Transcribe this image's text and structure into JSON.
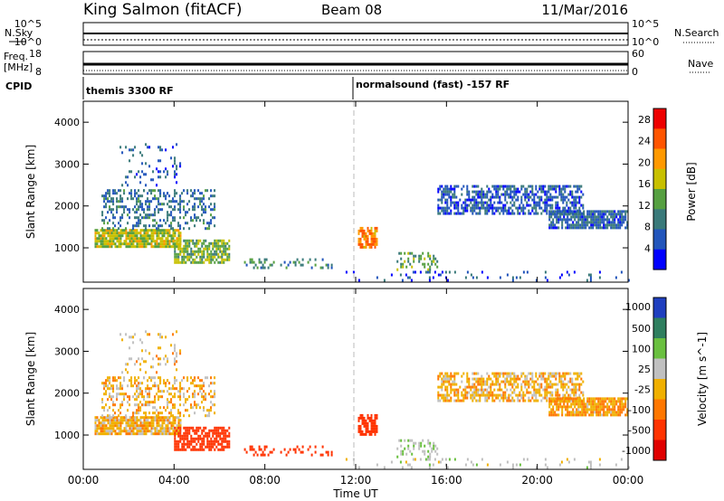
{
  "header": {
    "station": "King Salmon (fitACF)",
    "beam": "Beam 08",
    "date": "11/Mar/2016"
  },
  "top_panels": {
    "nsky_label": "N.Sky",
    "nsky_ticks": [
      "10^5",
      "10^0"
    ],
    "nsearch_label": "N.Search",
    "nsearch_ticks": [
      "10^5",
      "10^0"
    ],
    "freq_label_1": "Freq.",
    "freq_label_2": "[MHz]",
    "freq_ticks": [
      "18",
      "8"
    ],
    "nave_label": "Nave",
    "nave_ticks": [
      "60",
      "0"
    ],
    "cpid_label": "CPID",
    "cpid_entries": [
      "themis 3300 RF",
      "normalsound (fast) -157 RF"
    ]
  },
  "chart_data": [
    {
      "type": "heatmap",
      "title": "",
      "xlabel": "",
      "ylabel": "Slant Range [km]",
      "x_ticks": [
        "00:00",
        "04:00",
        "08:00",
        "12:00",
        "16:00",
        "20:00",
        "00:00"
      ],
      "x_range_hours": [
        0,
        24
      ],
      "y_ticks": [
        1000,
        2000,
        3000,
        4000
      ],
      "ylim": [
        180,
        4500
      ],
      "colorbar_label": "Power [dB]",
      "colorbar_ticks": [
        4,
        8,
        12,
        16,
        20,
        24,
        28
      ],
      "colorbar_range": [
        0,
        30
      ],
      "colors": [
        "#0000ff",
        "#2255bb",
        "#3a7a7a",
        "#56a041",
        "#c8c000",
        "#ff9900",
        "#ff5500",
        "#ee0000"
      ],
      "regions": [
        {
          "t": [
            0.5,
            4.3
          ],
          "r": [
            1000,
            1450
          ],
          "density": 0.85,
          "value": 16
        },
        {
          "t": [
            4.0,
            6.4
          ],
          "r": [
            650,
            1200
          ],
          "density": 0.7,
          "value": 14
        },
        {
          "t": [
            0.8,
            5.8
          ],
          "r": [
            1450,
            2400
          ],
          "density": 0.35,
          "value": 8
        },
        {
          "t": [
            1.6,
            4.3
          ],
          "r": [
            2300,
            3500
          ],
          "density": 0.12,
          "value": 6
        },
        {
          "t": [
            7.0,
            11.0
          ],
          "r": [
            500,
            750
          ],
          "density": 0.25,
          "value": 10
        },
        {
          "t": [
            12.1,
            12.9
          ],
          "r": [
            1000,
            1500
          ],
          "density": 0.75,
          "value": 22
        },
        {
          "t": [
            13.8,
            15.6
          ],
          "r": [
            450,
            900
          ],
          "density": 0.3,
          "value": 12
        },
        {
          "t": [
            15.6,
            22.0
          ],
          "r": [
            1800,
            2500
          ],
          "density": 0.6,
          "value": 6
        },
        {
          "t": [
            20.5,
            24.0
          ],
          "r": [
            1500,
            1900
          ],
          "density": 0.8,
          "value": 7
        },
        {
          "t": [
            11.0,
            24.0
          ],
          "r": [
            250,
            450
          ],
          "density": 0.1,
          "value": 5
        }
      ]
    },
    {
      "type": "heatmap",
      "title": "",
      "xlabel": "Time UT",
      "ylabel": "Slant Range [km]",
      "x_ticks": [
        "00:00",
        "04:00",
        "08:00",
        "12:00",
        "16:00",
        "20:00",
        "00:00"
      ],
      "x_range_hours": [
        0,
        24
      ],
      "y_ticks": [
        1000,
        2000,
        3000,
        4000
      ],
      "ylim": [
        180,
        4500
      ],
      "colorbar_label": "Velocity [m s^-1]",
      "colorbar_ticks": [
        "1000",
        "500",
        "100",
        "25",
        "-25",
        "-100",
        "-500",
        "-1000"
      ],
      "colors": [
        "#1f3fbf",
        "#2f7f5f",
        "#6ac040",
        "#c0c0c0",
        "#f0b000",
        "#ff7700",
        "#ff3300",
        "#e00000"
      ],
      "regions": [
        {
          "t": [
            0.5,
            4.3
          ],
          "r": [
            1000,
            1450
          ],
          "density": 0.85,
          "value": 0
        },
        {
          "t": [
            4.0,
            6.4
          ],
          "r": [
            650,
            1200
          ],
          "density": 0.7,
          "value": -180
        },
        {
          "t": [
            0.8,
            5.8
          ],
          "r": [
            1450,
            2400
          ],
          "density": 0.35,
          "value": 0
        },
        {
          "t": [
            1.6,
            4.3
          ],
          "r": [
            2300,
            3500
          ],
          "density": 0.12,
          "value": 10
        },
        {
          "t": [
            7.0,
            11.0
          ],
          "r": [
            500,
            750
          ],
          "density": 0.25,
          "value": -150
        },
        {
          "t": [
            12.1,
            12.9
          ],
          "r": [
            1000,
            1500
          ],
          "density": 0.75,
          "value": -200
        },
        {
          "t": [
            13.8,
            15.6
          ],
          "r": [
            450,
            900
          ],
          "density": 0.3,
          "value": 80
        },
        {
          "t": [
            15.6,
            22.0
          ],
          "r": [
            1800,
            2500
          ],
          "density": 0.6,
          "value": 0
        },
        {
          "t": [
            20.5,
            24.0
          ],
          "r": [
            1500,
            1900
          ],
          "density": 0.8,
          "value": -20
        },
        {
          "t": [
            11.0,
            24.0
          ],
          "r": [
            250,
            450
          ],
          "density": 0.1,
          "value": 60
        }
      ]
    }
  ]
}
